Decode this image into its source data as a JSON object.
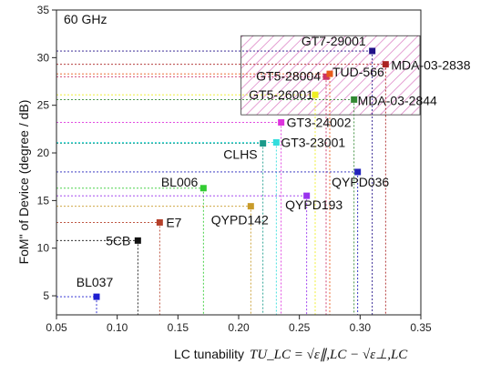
{
  "chart_data": {
    "type": "scatter",
    "annotation": "60 GHz",
    "xlabel": "LC tunability",
    "xlabel_formula": "TU_LC = √ε∥,LC − √ε⊥,LC",
    "ylabel": "FoM\" of Device (degree / dB)",
    "xlim": [
      0.05,
      0.35
    ],
    "ylim": [
      3,
      35
    ],
    "xticks": [
      "0.05",
      "0.10",
      "0.15",
      "0.20",
      "0.25",
      "0.30",
      "0.35"
    ],
    "yticks": [
      "5",
      "10",
      "15",
      "20",
      "25",
      "30",
      "35"
    ],
    "highlight_region": {
      "x": [
        0.205,
        0.35
      ],
      "y": [
        24.0,
        32.3
      ]
    },
    "points": [
      {
        "label": "BL037",
        "x": 0.083,
        "y": 4.9,
        "color": "#1f1fd0"
      },
      {
        "label": "5CB",
        "x": 0.117,
        "y": 10.8,
        "color": "#111111"
      },
      {
        "label": "E7",
        "x": 0.135,
        "y": 12.7,
        "color": "#b5402a"
      },
      {
        "label": "BL006",
        "x": 0.171,
        "y": 16.3,
        "color": "#33cc33"
      },
      {
        "label": "QYPD142",
        "x": 0.21,
        "y": 14.4,
        "color": "#c89b2a"
      },
      {
        "label": "CLHS",
        "x": 0.22,
        "y": 21.0,
        "color": "#1a9a8a"
      },
      {
        "label": "GT3-23001",
        "x": 0.231,
        "y": 21.1,
        "color": "#33dddd"
      },
      {
        "label": "GT3-24002",
        "x": 0.235,
        "y": 23.2,
        "color": "#dd33dd"
      },
      {
        "label": "QYPD193",
        "x": 0.256,
        "y": 15.5,
        "color": "#9933ee"
      },
      {
        "label": "GT5-26001",
        "x": 0.263,
        "y": 26.1,
        "color": "#eeee22"
      },
      {
        "label": "GT5-28004",
        "x": 0.272,
        "y": 28.0,
        "color": "#cc3366"
      },
      {
        "label": "TUD-566",
        "x": 0.275,
        "y": 28.3,
        "color": "#e85a1a"
      },
      {
        "label": "MDA-03-2844",
        "x": 0.295,
        "y": 25.6,
        "color": "#338833"
      },
      {
        "label": "QYPD036",
        "x": 0.298,
        "y": 18.0,
        "color": "#2222bb"
      },
      {
        "label": "GT7-29001",
        "x": 0.31,
        "y": 30.7,
        "color": "#221188"
      },
      {
        "label": "MDA-03-2838",
        "x": 0.321,
        "y": 29.3,
        "color": "#aa2222"
      }
    ]
  }
}
